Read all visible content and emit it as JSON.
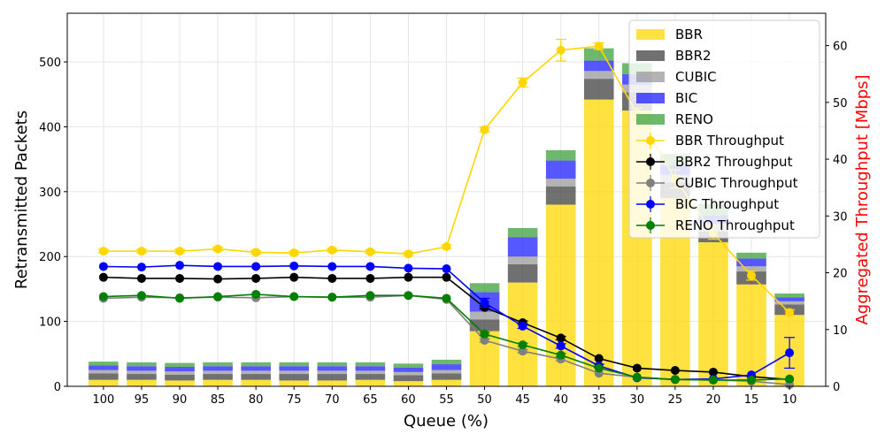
{
  "chart_data": {
    "type": "bar",
    "xlabel": "Queue (%)",
    "ylabel": "Retransmitted Packets",
    "y2label": "Aggregated Throughput [Mbps]",
    "y2label_color": "#ff0000",
    "categories": [
      "100",
      "95",
      "90",
      "85",
      "80",
      "75",
      "70",
      "65",
      "60",
      "55",
      "50",
      "45",
      "40",
      "35",
      "30",
      "25",
      "20",
      "15",
      "10"
    ],
    "ylim": [
      0,
      575
    ],
    "yticks": [
      0,
      100,
      200,
      300,
      400,
      500
    ],
    "y2lim": [
      0,
      65.7
    ],
    "y2ticks": [
      0,
      10,
      20,
      30,
      40,
      50,
      60
    ],
    "grid": true,
    "legend_position": "top-right",
    "bar_series": [
      {
        "name": "BBR",
        "color": "#ffd700",
        "values": [
          10,
          10,
          9,
          10,
          10,
          9,
          9,
          10,
          8,
          10,
          85,
          160,
          280,
          442,
          425,
          290,
          222,
          157,
          110
        ]
      },
      {
        "name": "BBR2",
        "color": "#404040",
        "values": [
          10,
          9,
          9,
          9,
          9,
          10,
          10,
          9,
          9,
          10,
          18,
          28,
          28,
          32,
          28,
          24,
          17,
          20,
          16
        ]
      },
      {
        "name": "CUBIC",
        "color": "#999999",
        "values": [
          5,
          5,
          5,
          5,
          5,
          5,
          5,
          5,
          5,
          5,
          12,
          12,
          12,
          12,
          12,
          12,
          12,
          8,
          5
        ]
      },
      {
        "name": "BIC",
        "color": "#1f1fff",
        "values": [
          7,
          7,
          7,
          7,
          7,
          7,
          7,
          7,
          7,
          9,
          30,
          30,
          28,
          16,
          16,
          14,
          12,
          12,
          6
        ]
      },
      {
        "name": "RENO",
        "color": "#3ca03c",
        "values": [
          6,
          6,
          6,
          6,
          6,
          6,
          6,
          6,
          6,
          7,
          14,
          14,
          16,
          19,
          17,
          18,
          18,
          9,
          6
        ]
      }
    ],
    "line_series": [
      {
        "name": "BBR Throughput",
        "color": "#ffd700",
        "values": [
          23.8,
          23.8,
          23.8,
          24.2,
          23.6,
          23.5,
          24.0,
          23.7,
          23.3,
          24.6,
          45.2,
          53.5,
          59.2,
          59.9,
          48.0,
          36.5,
          27.0,
          19.5,
          13.0
        ],
        "errors": [
          0.3,
          0.3,
          0.3,
          0.3,
          0.3,
          0.3,
          0.3,
          0.3,
          0.3,
          0.3,
          0.4,
          0.8,
          1.9,
          0.6,
          1.0,
          1.6,
          1.1,
          0.8,
          0.5
        ]
      },
      {
        "name": "BBR2 Throughput",
        "color": "#000000",
        "values": [
          19.2,
          19.0,
          19.0,
          18.9,
          19.0,
          19.2,
          19.0,
          19.0,
          19.2,
          19.2,
          13.9,
          11.2,
          8.5,
          4.9,
          3.2,
          2.8,
          2.5,
          1.7,
          1.2
        ],
        "errors": [
          0.2,
          0.2,
          0.2,
          0.2,
          0.2,
          0.2,
          0.2,
          0.2,
          0.2,
          0.2,
          0.3,
          0.3,
          0.3,
          0.2,
          0.2,
          0.2,
          0.2,
          0.2,
          0.2
        ]
      },
      {
        "name": "CUBIC Throughput",
        "color": "#808080",
        "values": [
          15.5,
          15.7,
          15.6,
          15.7,
          15.6,
          15.8,
          15.7,
          15.7,
          16.0,
          15.3,
          8.1,
          6.2,
          4.8,
          2.3,
          1.6,
          1.2,
          1.1,
          0.9,
          0.3
        ],
        "errors": [
          0.2,
          0.2,
          0.2,
          0.2,
          0.2,
          0.2,
          0.2,
          0.2,
          0.2,
          0.2,
          0.3,
          0.3,
          0.3,
          0.2,
          0.2,
          0.2,
          0.2,
          0.2,
          0.2
        ]
      },
      {
        "name": "BIC Throughput",
        "color": "#0000ff",
        "values": [
          21.1,
          21.0,
          21.3,
          21.1,
          21.1,
          21.2,
          21.1,
          21.1,
          20.8,
          20.7,
          14.7,
          10.6,
          7.1,
          3.6,
          1.5,
          1.2,
          1.3,
          2.0,
          5.9
        ],
        "errors": [
          0.2,
          0.2,
          0.2,
          0.2,
          0.2,
          0.2,
          0.2,
          0.2,
          0.2,
          0.2,
          0.8,
          0.4,
          0.4,
          0.3,
          0.2,
          0.2,
          0.2,
          0.2,
          2.7
        ]
      },
      {
        "name": "RENO Throughput",
        "color": "#008000",
        "values": [
          15.8,
          16.0,
          15.5,
          15.8,
          16.2,
          15.8,
          15.7,
          16.0,
          16.0,
          15.5,
          9.2,
          7.3,
          5.5,
          3.2,
          1.6,
          1.2,
          1.1,
          1.1,
          1.3
        ],
        "errors": [
          0.2,
          0.2,
          0.2,
          0.2,
          0.2,
          0.2,
          0.2,
          0.2,
          0.2,
          0.2,
          0.3,
          0.3,
          0.3,
          0.2,
          0.2,
          0.2,
          0.2,
          0.2,
          0.2
        ]
      }
    ]
  }
}
